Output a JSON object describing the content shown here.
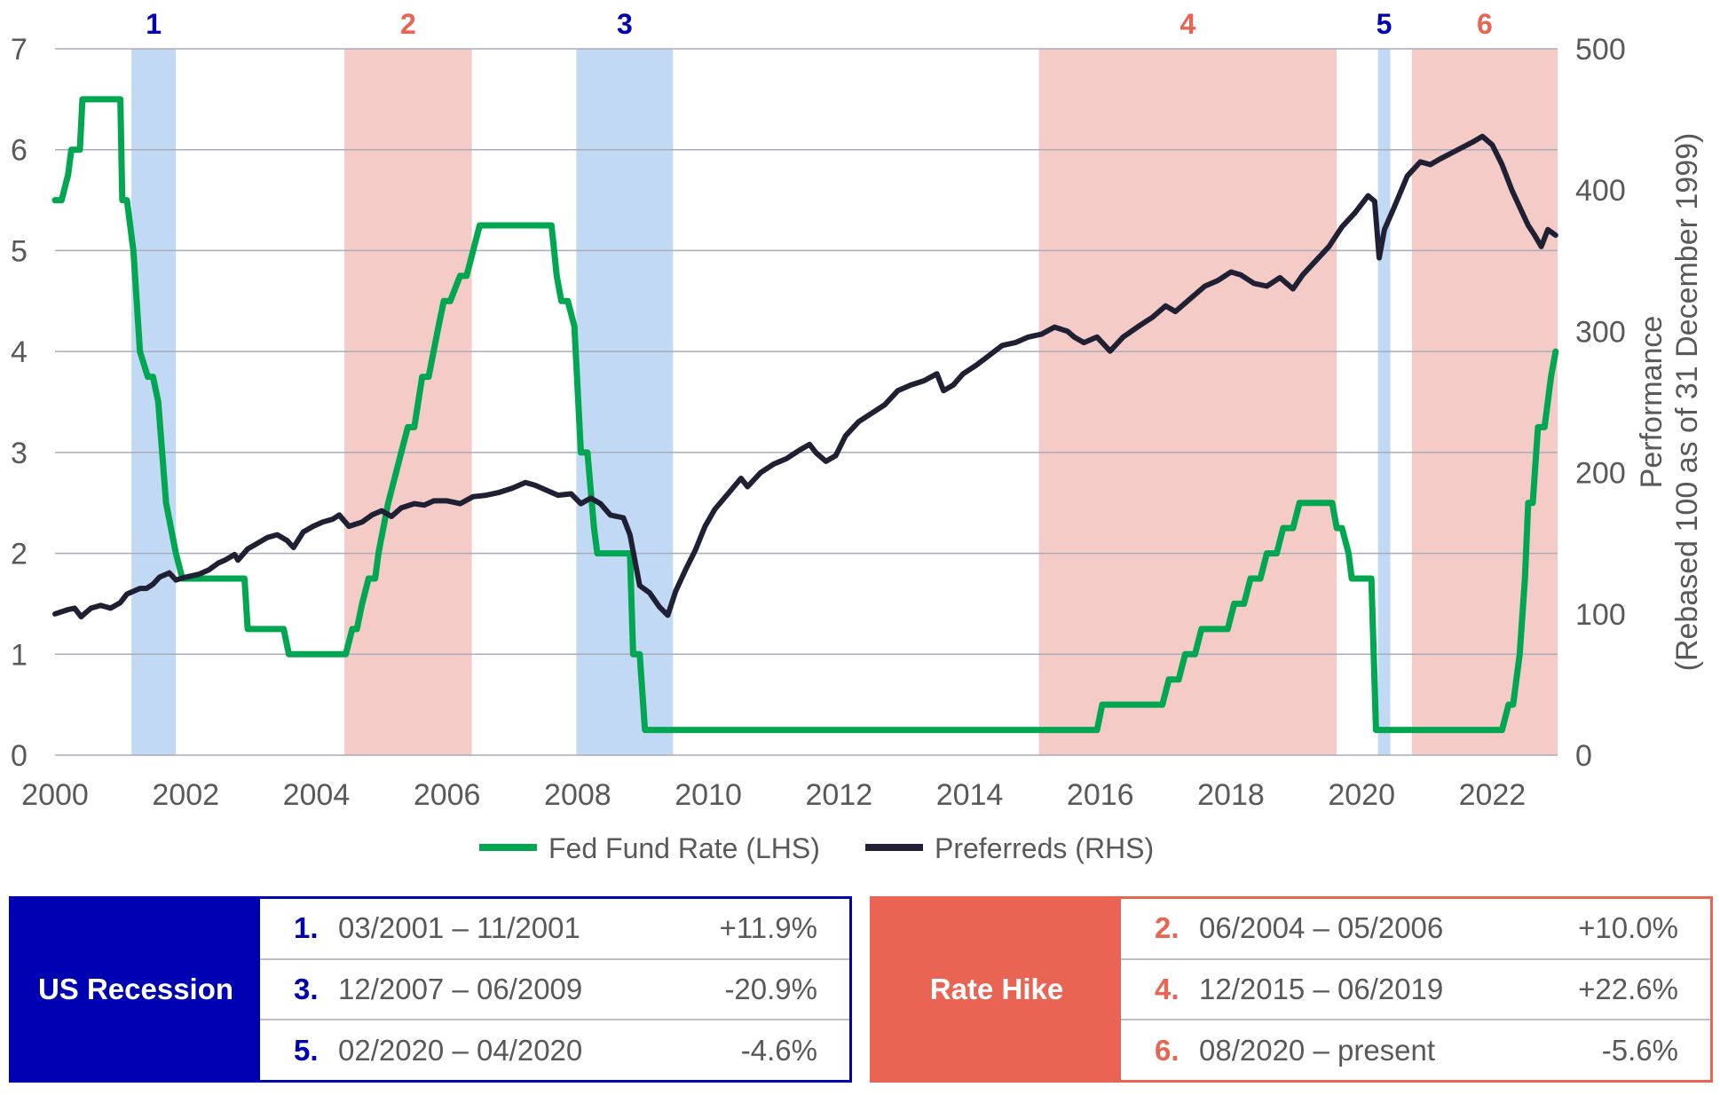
{
  "chart_data": {
    "type": "line",
    "x_ticks": [
      "2000",
      "2002",
      "2004",
      "2006",
      "2008",
      "2010",
      "2012",
      "2014",
      "2016",
      "2018",
      "2020",
      "2022"
    ],
    "xlim": [
      2000,
      2023
    ],
    "y_left": {
      "label": "",
      "ticks": [
        "0",
        "1",
        "2",
        "3",
        "4",
        "5",
        "6",
        "7"
      ],
      "lim": [
        0,
        7
      ]
    },
    "y_right": {
      "label_line1": "Performance",
      "label_line2": "(Rebased 100 as of 31 December 1999)",
      "ticks": [
        "0",
        "100",
        "200",
        "300",
        "400",
        "500"
      ],
      "lim": [
        0,
        500
      ]
    },
    "periods": [
      {
        "label": "1",
        "kind": "recession",
        "start": 2001.17,
        "end": 2001.85
      },
      {
        "label": "2",
        "kind": "hike",
        "start": 2004.43,
        "end": 2006.38
      },
      {
        "label": "3",
        "kind": "recession",
        "start": 2007.98,
        "end": 2009.46
      },
      {
        "label": "4",
        "kind": "hike",
        "start": 2015.06,
        "end": 2019.62
      },
      {
        "label": "5",
        "kind": "recession",
        "start": 2020.25,
        "end": 2020.44
      },
      {
        "label": "6",
        "kind": "hike",
        "start": 2020.77,
        "end": 2023.0
      }
    ],
    "series": [
      {
        "name": "Fed Fund Rate (LHS)",
        "axis": "left",
        "color": "#00a650",
        "points": [
          [
            2000.0,
            5.5
          ],
          [
            2000.1,
            5.5
          ],
          [
            2000.2,
            5.75
          ],
          [
            2000.25,
            6.0
          ],
          [
            2000.38,
            6.0
          ],
          [
            2000.42,
            6.5
          ],
          [
            2001.0,
            6.5
          ],
          [
            2001.03,
            5.5
          ],
          [
            2001.1,
            5.5
          ],
          [
            2001.2,
            5.0
          ],
          [
            2001.25,
            4.5
          ],
          [
            2001.3,
            4.0
          ],
          [
            2001.42,
            3.75
          ],
          [
            2001.5,
            3.75
          ],
          [
            2001.58,
            3.5
          ],
          [
            2001.7,
            2.5
          ],
          [
            2001.85,
            2.0
          ],
          [
            2001.95,
            1.75
          ],
          [
            2002.9,
            1.75
          ],
          [
            2002.95,
            1.25
          ],
          [
            2003.5,
            1.25
          ],
          [
            2003.58,
            1.0
          ],
          [
            2004.45,
            1.0
          ],
          [
            2004.55,
            1.25
          ],
          [
            2004.62,
            1.25
          ],
          [
            2004.7,
            1.5
          ],
          [
            2004.8,
            1.75
          ],
          [
            2004.9,
            1.75
          ],
          [
            2004.95,
            2.0
          ],
          [
            2005.1,
            2.5
          ],
          [
            2005.2,
            2.75
          ],
          [
            2005.3,
            3.0
          ],
          [
            2005.4,
            3.25
          ],
          [
            2005.5,
            3.25
          ],
          [
            2005.62,
            3.75
          ],
          [
            2005.72,
            3.75
          ],
          [
            2005.87,
            4.25
          ],
          [
            2005.95,
            4.5
          ],
          [
            2006.05,
            4.5
          ],
          [
            2006.2,
            4.75
          ],
          [
            2006.3,
            4.75
          ],
          [
            2006.5,
            5.25
          ],
          [
            2007.6,
            5.25
          ],
          [
            2007.68,
            4.75
          ],
          [
            2007.75,
            4.5
          ],
          [
            2007.85,
            4.5
          ],
          [
            2007.95,
            4.25
          ],
          [
            2008.05,
            3.0
          ],
          [
            2008.15,
            3.0
          ],
          [
            2008.25,
            2.25
          ],
          [
            2008.3,
            2.0
          ],
          [
            2008.8,
            2.0
          ],
          [
            2008.85,
            1.0
          ],
          [
            2008.95,
            1.0
          ],
          [
            2009.03,
            0.25
          ],
          [
            2015.95,
            0.25
          ],
          [
            2016.03,
            0.5
          ],
          [
            2016.95,
            0.5
          ],
          [
            2017.05,
            0.75
          ],
          [
            2017.2,
            0.75
          ],
          [
            2017.3,
            1.0
          ],
          [
            2017.45,
            1.0
          ],
          [
            2017.55,
            1.25
          ],
          [
            2017.95,
            1.25
          ],
          [
            2018.05,
            1.5
          ],
          [
            2018.2,
            1.5
          ],
          [
            2018.3,
            1.75
          ],
          [
            2018.45,
            1.75
          ],
          [
            2018.55,
            2.0
          ],
          [
            2018.7,
            2.0
          ],
          [
            2018.8,
            2.25
          ],
          [
            2018.95,
            2.25
          ],
          [
            2019.05,
            2.5
          ],
          [
            2019.55,
            2.5
          ],
          [
            2019.62,
            2.25
          ],
          [
            2019.7,
            2.25
          ],
          [
            2019.8,
            2.0
          ],
          [
            2019.85,
            1.75
          ],
          [
            2020.15,
            1.75
          ],
          [
            2020.22,
            0.25
          ],
          [
            2022.15,
            0.25
          ],
          [
            2022.25,
            0.5
          ],
          [
            2022.32,
            0.5
          ],
          [
            2022.42,
            1.0
          ],
          [
            2022.5,
            1.75
          ],
          [
            2022.55,
            2.5
          ],
          [
            2022.62,
            2.5
          ],
          [
            2022.7,
            3.25
          ],
          [
            2022.8,
            3.25
          ],
          [
            2022.9,
            3.75
          ],
          [
            2022.97,
            4.0
          ]
        ]
      },
      {
        "name": "Preferreds (RHS)",
        "axis": "right",
        "color": "#1f2033",
        "points": [
          [
            2000.0,
            100
          ],
          [
            2000.2,
            103
          ],
          [
            2000.3,
            104
          ],
          [
            2000.4,
            98
          ],
          [
            2000.55,
            104
          ],
          [
            2000.7,
            106
          ],
          [
            2000.85,
            104
          ],
          [
            2001.0,
            108
          ],
          [
            2001.1,
            114
          ],
          [
            2001.3,
            118
          ],
          [
            2001.4,
            118
          ],
          [
            2001.5,
            121
          ],
          [
            2001.6,
            126
          ],
          [
            2001.75,
            129
          ],
          [
            2001.85,
            124
          ],
          [
            2002.0,
            126
          ],
          [
            2002.2,
            128
          ],
          [
            2002.35,
            131
          ],
          [
            2002.5,
            136
          ],
          [
            2002.6,
            138
          ],
          [
            2002.75,
            142
          ],
          [
            2002.8,
            138
          ],
          [
            2002.95,
            146
          ],
          [
            2003.1,
            150
          ],
          [
            2003.25,
            154
          ],
          [
            2003.4,
            156
          ],
          [
            2003.55,
            152
          ],
          [
            2003.65,
            147
          ],
          [
            2003.8,
            158
          ],
          [
            2003.95,
            162
          ],
          [
            2004.1,
            165
          ],
          [
            2004.25,
            167
          ],
          [
            2004.35,
            170
          ],
          [
            2004.5,
            162
          ],
          [
            2004.7,
            165
          ],
          [
            2004.85,
            170
          ],
          [
            2005.0,
            173
          ],
          [
            2005.15,
            169
          ],
          [
            2005.3,
            175
          ],
          [
            2005.5,
            178
          ],
          [
            2005.65,
            177
          ],
          [
            2005.8,
            180
          ],
          [
            2006.0,
            180
          ],
          [
            2006.2,
            178
          ],
          [
            2006.4,
            183
          ],
          [
            2006.6,
            184
          ],
          [
            2006.8,
            186
          ],
          [
            2007.0,
            189
          ],
          [
            2007.2,
            193
          ],
          [
            2007.35,
            191
          ],
          [
            2007.5,
            188
          ],
          [
            2007.7,
            184
          ],
          [
            2007.9,
            185
          ],
          [
            2008.05,
            178
          ],
          [
            2008.2,
            182
          ],
          [
            2008.35,
            178
          ],
          [
            2008.5,
            170
          ],
          [
            2008.7,
            168
          ],
          [
            2008.8,
            156
          ],
          [
            2008.95,
            120
          ],
          [
            2009.1,
            115
          ],
          [
            2009.25,
            105
          ],
          [
            2009.38,
            99
          ],
          [
            2009.5,
            116
          ],
          [
            2009.65,
            131
          ],
          [
            2009.8,
            145
          ],
          [
            2009.95,
            162
          ],
          [
            2010.1,
            174
          ],
          [
            2010.3,
            185
          ],
          [
            2010.5,
            196
          ],
          [
            2010.6,
            190
          ],
          [
            2010.8,
            200
          ],
          [
            2011.0,
            206
          ],
          [
            2011.2,
            210
          ],
          [
            2011.4,
            216
          ],
          [
            2011.55,
            220
          ],
          [
            2011.65,
            214
          ],
          [
            2011.8,
            208
          ],
          [
            2011.95,
            212
          ],
          [
            2012.1,
            226
          ],
          [
            2012.3,
            236
          ],
          [
            2012.5,
            242
          ],
          [
            2012.7,
            248
          ],
          [
            2012.9,
            258
          ],
          [
            2013.1,
            262
          ],
          [
            2013.3,
            265
          ],
          [
            2013.5,
            270
          ],
          [
            2013.6,
            258
          ],
          [
            2013.75,
            262
          ],
          [
            2013.9,
            270
          ],
          [
            2014.1,
            276
          ],
          [
            2014.3,
            283
          ],
          [
            2014.5,
            290
          ],
          [
            2014.7,
            292
          ],
          [
            2014.9,
            296
          ],
          [
            2015.1,
            298
          ],
          [
            2015.3,
            303
          ],
          [
            2015.5,
            300
          ],
          [
            2015.6,
            296
          ],
          [
            2015.75,
            292
          ],
          [
            2015.95,
            296
          ],
          [
            2016.15,
            286
          ],
          [
            2016.35,
            296
          ],
          [
            2016.6,
            304
          ],
          [
            2016.8,
            310
          ],
          [
            2017.0,
            318
          ],
          [
            2017.15,
            314
          ],
          [
            2017.35,
            322
          ],
          [
            2017.6,
            332
          ],
          [
            2017.8,
            336
          ],
          [
            2018.0,
            342
          ],
          [
            2018.15,
            340
          ],
          [
            2018.35,
            334
          ],
          [
            2018.55,
            332
          ],
          [
            2018.75,
            338
          ],
          [
            2018.95,
            330
          ],
          [
            2019.1,
            340
          ],
          [
            2019.3,
            350
          ],
          [
            2019.5,
            360
          ],
          [
            2019.7,
            374
          ],
          [
            2019.9,
            384
          ],
          [
            2020.1,
            396
          ],
          [
            2020.2,
            392
          ],
          [
            2020.27,
            352
          ],
          [
            2020.35,
            372
          ],
          [
            2020.5,
            388
          ],
          [
            2020.7,
            410
          ],
          [
            2020.9,
            420
          ],
          [
            2021.05,
            418
          ],
          [
            2021.2,
            422
          ],
          [
            2021.45,
            428
          ],
          [
            2021.7,
            434
          ],
          [
            2021.85,
            438
          ],
          [
            2022.0,
            432
          ],
          [
            2022.15,
            418
          ],
          [
            2022.3,
            400
          ],
          [
            2022.45,
            385
          ],
          [
            2022.55,
            375
          ],
          [
            2022.65,
            368
          ],
          [
            2022.75,
            360
          ],
          [
            2022.85,
            372
          ],
          [
            2022.97,
            368
          ]
        ]
      }
    ]
  },
  "legend": {
    "fed_label": "Fed Fund Rate (LHS)",
    "pref_label": "Preferreds (RHS)"
  },
  "colors": {
    "recession_fill": "#c2d9f5",
    "hike_fill": "#f5cbc7",
    "recession_text": "#0000b3",
    "hike_text": "#e96452",
    "gridline": "#a9abb8"
  },
  "recession_table": {
    "title": "US Recession",
    "rows": [
      {
        "num": "1.",
        "dates": "03/2001 – 11/2001",
        "perf": "+11.9%"
      },
      {
        "num": "3.",
        "dates": "12/2007 – 06/2009",
        "perf": "-20.9%"
      },
      {
        "num": "5.",
        "dates": "02/2020 – 04/2020",
        "perf": "-4.6%"
      }
    ]
  },
  "hike_table": {
    "title": "Rate Hike",
    "rows": [
      {
        "num": "2.",
        "dates": "06/2004 – 05/2006",
        "perf": "+10.0%"
      },
      {
        "num": "4.",
        "dates": "12/2015 – 06/2019",
        "perf": "+22.6%"
      },
      {
        "num": "6.",
        "dates": "08/2020 – present",
        "perf": "-5.6%"
      }
    ]
  }
}
